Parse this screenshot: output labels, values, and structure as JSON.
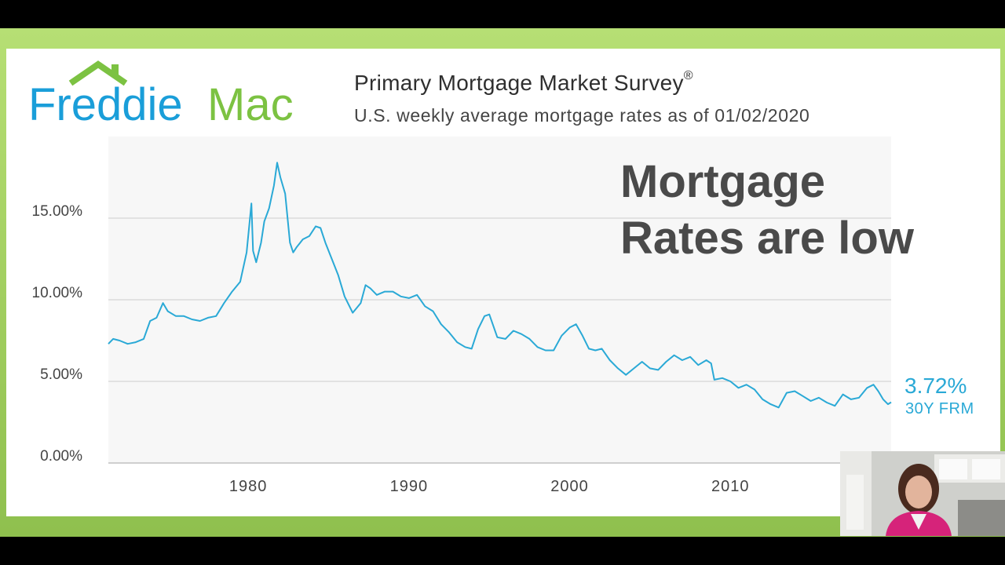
{
  "brand": {
    "logo_text_left": "Freddie",
    "logo_text_right": "Mac",
    "blue": "#1a9ed9",
    "green": "#7cc242"
  },
  "header": {
    "title": "Primary Mortgage Market Survey",
    "title_mark": "®",
    "subtitle": "U.S. weekly average mortgage rates as of 01/02/2020"
  },
  "overlay": {
    "line1": "Mortgage",
    "line2": "Rates are low"
  },
  "callout": {
    "value": "3.72%",
    "label": "30Y FRM"
  },
  "chart_data": {
    "type": "line",
    "title": "Primary Mortgage Market Survey",
    "xlabel": "",
    "ylabel": "",
    "x_ticks": [
      1980,
      1990,
      2000,
      2010
    ],
    "y_ticks": [
      "0.00%",
      "5.00%",
      "10.00%",
      "15.00%"
    ],
    "y_tick_values": [
      0,
      5,
      10,
      15
    ],
    "xlim": [
      1971.3,
      2020.0
    ],
    "ylim": [
      0,
      20
    ],
    "grid": true,
    "line_color": "#2aa9d6",
    "series": [
      {
        "name": "30Y FRM",
        "x": [
          1971.3,
          1971.6,
          1972.0,
          1972.5,
          1973.0,
          1973.5,
          1973.9,
          1974.3,
          1974.7,
          1975.0,
          1975.5,
          1976.0,
          1976.5,
          1977.0,
          1977.5,
          1978.0,
          1978.5,
          1979.0,
          1979.5,
          1979.9,
          1980.2,
          1980.3,
          1980.5,
          1980.8,
          1981.0,
          1981.3,
          1981.6,
          1981.8,
          1982.0,
          1982.3,
          1982.6,
          1982.8,
          1983.0,
          1983.4,
          1983.8,
          1984.2,
          1984.5,
          1984.8,
          1985.2,
          1985.6,
          1986.0,
          1986.5,
          1987.0,
          1987.3,
          1987.6,
          1988.0,
          1988.5,
          1989.0,
          1989.5,
          1990.0,
          1990.5,
          1991.0,
          1991.5,
          1992.0,
          1992.5,
          1993.0,
          1993.5,
          1993.9,
          1994.3,
          1994.7,
          1995.0,
          1995.5,
          1996.0,
          1996.5,
          1997.0,
          1997.5,
          1998.0,
          1998.5,
          1999.0,
          1999.5,
          2000.0,
          2000.4,
          2000.8,
          2001.2,
          2001.6,
          2002.0,
          2002.5,
          2003.0,
          2003.5,
          2004.0,
          2004.5,
          2005.0,
          2005.5,
          2006.0,
          2006.5,
          2007.0,
          2007.5,
          2008.0,
          2008.5,
          2008.8,
          2009.0,
          2009.5,
          2010.0,
          2010.5,
          2011.0,
          2011.5,
          2012.0,
          2012.5,
          2013.0,
          2013.5,
          2014.0,
          2014.5,
          2015.0,
          2015.5,
          2016.0,
          2016.5,
          2017.0,
          2017.5,
          2018.0,
          2018.5,
          2018.9,
          2019.2,
          2019.5,
          2019.8,
          2020.0
        ],
        "y": [
          7.3,
          7.6,
          7.5,
          7.3,
          7.4,
          7.6,
          8.7,
          8.9,
          9.8,
          9.3,
          9.0,
          9.0,
          8.8,
          8.7,
          8.9,
          9.0,
          9.8,
          10.5,
          11.1,
          12.9,
          15.9,
          13.0,
          12.3,
          13.5,
          14.8,
          15.6,
          17.0,
          18.4,
          17.5,
          16.5,
          13.5,
          12.9,
          13.2,
          13.7,
          13.9,
          14.5,
          14.4,
          13.5,
          12.5,
          11.5,
          10.2,
          9.2,
          9.8,
          10.9,
          10.7,
          10.3,
          10.5,
          10.5,
          10.2,
          10.1,
          10.3,
          9.6,
          9.3,
          8.5,
          8.0,
          7.4,
          7.1,
          7.0,
          8.2,
          9.0,
          9.1,
          7.7,
          7.6,
          8.1,
          7.9,
          7.6,
          7.1,
          6.9,
          6.9,
          7.8,
          8.3,
          8.5,
          7.8,
          7.0,
          6.9,
          7.0,
          6.3,
          5.8,
          5.4,
          5.8,
          6.2,
          5.8,
          5.7,
          6.2,
          6.6,
          6.3,
          6.5,
          6.0,
          6.3,
          6.1,
          5.1,
          5.2,
          5.0,
          4.6,
          4.8,
          4.5,
          3.9,
          3.6,
          3.4,
          4.3,
          4.4,
          4.1,
          3.8,
          4.0,
          3.7,
          3.5,
          4.2,
          3.9,
          4.0,
          4.6,
          4.8,
          4.4,
          3.9,
          3.6,
          3.72
        ]
      }
    ]
  }
}
